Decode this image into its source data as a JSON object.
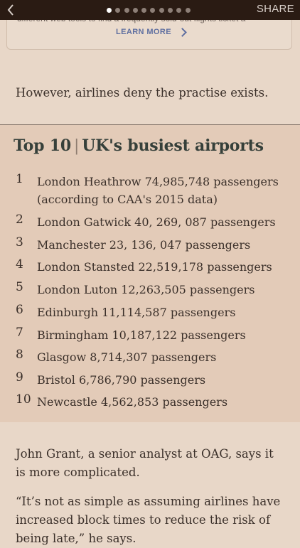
{
  "topbar": {
    "share_label": "SHARE",
    "page_count": 10,
    "active_page": 1
  },
  "promo": {
    "cut_text": "different web tools to find a frequently sold-out flights ticket a",
    "learn_more_label": "LEARN MORE"
  },
  "article": {
    "para1": "However, airlines deny the practise exists.",
    "para2": "John Grant, a senior analyst at OAG, says it is more complicated.",
    "para3": "“It’s not as simple as assuming airlines have increased block times to reduce the risk of being late,” he says."
  },
  "top10": {
    "title_main": "Top 10",
    "title_sep": "|",
    "title_sub": "UK's busiest airports",
    "items": [
      {
        "rank": "1",
        "text": "London Heathrow 74,985,748 passengers (according to CAA's 2015 data)"
      },
      {
        "rank": "2",
        "text": "London Gatwick 40, 269, 087 passengers"
      },
      {
        "rank": "3",
        "text": "Manchester 23, 136, 047 passengers"
      },
      {
        "rank": "4",
        "text": "London Stansted 22,519,178 passengers"
      },
      {
        "rank": "5",
        "text": "London Luton 12,263,505 passengers"
      },
      {
        "rank": "6",
        "text": "Edinburgh 11,114,587 passengers"
      },
      {
        "rank": "7",
        "text": "Birmingham 10,187,122 passengers"
      },
      {
        "rank": "8",
        "text": "Glasgow 8,714,307 passengers"
      },
      {
        "rank": "9",
        "text": "Bristol 6,786,790 passengers"
      },
      {
        "rank": "10",
        "text": "Newcastle 4,562,853 passengers"
      }
    ]
  },
  "colors": {
    "topbar": "#2a1b13",
    "page_bg": "#e8d7c8",
    "top10_bg": "#e3cbb8",
    "link": "#5f6fa0"
  }
}
